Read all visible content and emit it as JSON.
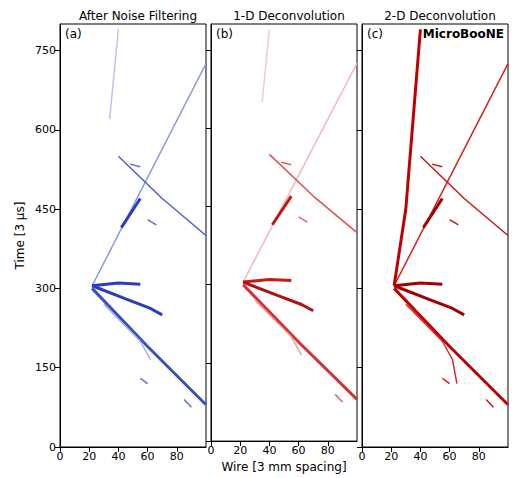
{
  "chart_data": [
    {
      "type": "line",
      "title": "After Noise Filtering",
      "annotations": [
        "(a)"
      ],
      "ylabel": "Time [3 μs]",
      "xlim": [
        0,
        100
      ],
      "xticks": [
        0,
        20,
        40,
        60,
        80
      ],
      "ylim": [
        0,
        800
      ],
      "yticks": [
        0,
        150,
        300,
        450,
        600,
        750
      ],
      "grid": false,
      "series": [
        {
          "color": "#8a9ce0",
          "values": [
            [
              22,
              305
            ],
            [
              100,
              725
            ]
          ]
        },
        {
          "color": "#b8c4ee",
          "values": [
            [
              34,
              620
            ],
            [
              40,
              790
            ]
          ]
        },
        {
          "color": "#2a3cc0",
          "line_style": "thick",
          "values": [
            [
              22,
              305
            ],
            [
              40,
              310
            ],
            [
              55,
              308
            ]
          ]
        },
        {
          "color": "#2a3cc0",
          "line_style": "thick",
          "values": [
            [
              22,
              305
            ],
            [
              45,
              280
            ],
            [
              62,
              262
            ],
            [
              70,
              250
            ]
          ]
        },
        {
          "color": "#3a50c8",
          "line_style": "thick",
          "values": [
            [
              22,
              300
            ],
            [
              60,
              190
            ],
            [
              100,
              80
            ]
          ]
        },
        {
          "color": "#9fb0e8",
          "values": [
            [
              30,
              270
            ],
            [
              55,
              200
            ],
            [
              62,
              165
            ]
          ]
        },
        {
          "color": "#4a60d0",
          "values": [
            [
              40,
              550
            ],
            [
              70,
              470
            ],
            [
              100,
              400
            ]
          ]
        },
        {
          "color": "#2a3cc0",
          "line_style": "thick",
          "values": [
            [
              42,
              415
            ],
            [
              55,
              470
            ]
          ]
        },
        {
          "color": "#5a70d8",
          "values": [
            [
              48,
              535
            ],
            [
              55,
              530
            ]
          ]
        },
        {
          "color": "#5a70d8",
          "values": [
            [
              60,
              430
            ],
            [
              66,
              420
            ]
          ]
        },
        {
          "color": "#5a70d8",
          "values": [
            [
              85,
              90
            ],
            [
              90,
              75
            ]
          ]
        },
        {
          "color": "#5a70d8",
          "values": [
            [
              55,
              130
            ],
            [
              60,
              120
            ]
          ]
        }
      ]
    },
    {
      "type": "line",
      "title": "1-D Deconvolution",
      "annotations": [
        "(b)"
      ],
      "xlabel": "Wire [3 mm spacing]",
      "xlim": [
        0,
        100
      ],
      "xticks": [
        0,
        20,
        40,
        60,
        80
      ],
      "ylim": [
        0,
        800
      ],
      "yticks": [
        0,
        150,
        300,
        450,
        600,
        750
      ],
      "tick_labels": "x",
      "grid": false,
      "series": [
        {
          "color": "#f4b8b8",
          "values": [
            [
              22,
              305
            ],
            [
              100,
              725
            ]
          ]
        },
        {
          "color": "#f6c8c8",
          "values": [
            [
              35,
              650
            ],
            [
              40,
              790
            ]
          ]
        },
        {
          "color": "#c81818",
          "line_style": "thick",
          "values": [
            [
              22,
              305
            ],
            [
              40,
              310
            ],
            [
              55,
              308
            ]
          ]
        },
        {
          "color": "#b01010",
          "line_style": "thick",
          "values": [
            [
              22,
              305
            ],
            [
              45,
              280
            ],
            [
              62,
              262
            ],
            [
              70,
              250
            ]
          ]
        },
        {
          "color": "#d83030",
          "line_style": "thick",
          "values": [
            [
              22,
              300
            ],
            [
              60,
              190
            ],
            [
              100,
              80
            ]
          ]
        },
        {
          "color": "#f0a0a0",
          "values": [
            [
              30,
              270
            ],
            [
              55,
              200
            ],
            [
              62,
              165
            ]
          ]
        },
        {
          "color": "#e05050",
          "values": [
            [
              40,
              550
            ],
            [
              70,
              470
            ],
            [
              100,
              400
            ]
          ]
        },
        {
          "color": "#c01818",
          "line_style": "thick",
          "values": [
            [
              42,
              415
            ],
            [
              55,
              470
            ]
          ]
        },
        {
          "color": "#e06060",
          "values": [
            [
              48,
              535
            ],
            [
              55,
              530
            ]
          ]
        },
        {
          "color": "#e06060",
          "values": [
            [
              60,
              430
            ],
            [
              66,
              420
            ]
          ]
        },
        {
          "color": "#e06060",
          "values": [
            [
              85,
              90
            ],
            [
              90,
              75
            ]
          ]
        }
      ]
    },
    {
      "type": "line",
      "title": "2-D Deconvolution",
      "annotations": [
        "(c)",
        "MicroBooNE"
      ],
      "xlim": [
        0,
        100
      ],
      "xticks": [
        0,
        20,
        40,
        60,
        80
      ],
      "ylim": [
        0,
        800
      ],
      "yticks": [
        0,
        150,
        300,
        450,
        600,
        750
      ],
      "tick_labels": "x",
      "grid": false,
      "series": [
        {
          "color": "#d02020",
          "values": [
            [
              22,
              305
            ],
            [
              100,
              725
            ]
          ]
        },
        {
          "color": "#c00000",
          "line_style": "thick",
          "values": [
            [
              22,
              305
            ],
            [
              30,
              450
            ],
            [
              40,
              790
            ]
          ]
        },
        {
          "color": "#a00000",
          "line_style": "thick",
          "values": [
            [
              22,
              305
            ],
            [
              40,
              310
            ],
            [
              55,
              308
            ]
          ]
        },
        {
          "color": "#a00000",
          "line_style": "thick",
          "values": [
            [
              22,
              305
            ],
            [
              45,
              280
            ],
            [
              62,
              262
            ],
            [
              70,
              250
            ]
          ]
        },
        {
          "color": "#c00000",
          "line_style": "thick",
          "values": [
            [
              22,
              300
            ],
            [
              60,
              190
            ],
            [
              100,
              80
            ]
          ]
        },
        {
          "color": "#d03030",
          "values": [
            [
              30,
              270
            ],
            [
              55,
              200
            ],
            [
              62,
              165
            ],
            [
              65,
              120
            ]
          ]
        },
        {
          "color": "#c81818",
          "values": [
            [
              40,
              550
            ],
            [
              70,
              470
            ],
            [
              100,
              400
            ]
          ]
        },
        {
          "color": "#a00000",
          "line_style": "thick",
          "values": [
            [
              42,
              415
            ],
            [
              55,
              470
            ]
          ]
        },
        {
          "color": "#c81818",
          "values": [
            [
              48,
              535
            ],
            [
              55,
              530
            ]
          ]
        },
        {
          "color": "#c81818",
          "values": [
            [
              60,
              430
            ],
            [
              66,
              420
            ]
          ]
        },
        {
          "color": "#c81818",
          "values": [
            [
              85,
              90
            ],
            [
              90,
              75
            ]
          ]
        },
        {
          "color": "#c81818",
          "values": [
            [
              55,
              130
            ],
            [
              60,
              120
            ]
          ]
        }
      ]
    }
  ]
}
